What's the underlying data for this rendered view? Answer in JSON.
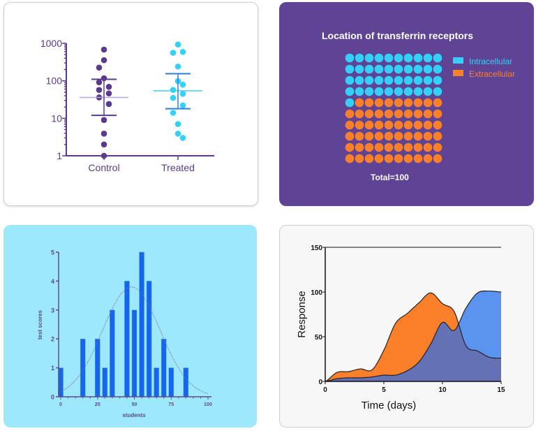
{
  "chart_data": [
    {
      "type": "scatter",
      "y_scale": "log",
      "ylim": [
        1,
        1000
      ],
      "yticks": [
        "1",
        "10",
        "100",
        "1000"
      ],
      "categories": [
        "Control",
        "Treated"
      ],
      "series": [
        {
          "name": "Control",
          "values": [
            680,
            355,
            225,
            117,
            91,
            69,
            57,
            46,
            36,
            24,
            9,
            3.9,
            2,
            1
          ],
          "mean": 36,
          "error_low": 12,
          "error_high": 110,
          "point_color": "#5a3a8c",
          "mean_color": "#b9a3e6",
          "error_color": "#5a3a8c"
        },
        {
          "name": "Treated",
          "values": [
            930,
            590,
            560,
            240,
            98,
            79,
            57,
            45,
            35,
            22,
            14,
            7,
            3.9,
            3
          ],
          "mean": 54,
          "error_low": 18,
          "error_high": 155,
          "point_color": "#33d1f7",
          "mean_color": "#3fd0f5",
          "error_color": "#2e7fe0"
        }
      ]
    },
    {
      "type": "waffle",
      "title": "Location of transferrin receptors",
      "total_label": "Total=100",
      "total": 100,
      "series": [
        {
          "name": "Intracellular",
          "value": 41,
          "color": "#33d1f7"
        },
        {
          "name": "Extracellular",
          "value": 59,
          "color": "#fc7f2a"
        }
      ],
      "legend": "right"
    },
    {
      "type": "bar",
      "xlabel": "students",
      "ylabel": "test scores",
      "xlim": [
        0,
        100
      ],
      "ylim": [
        0,
        5
      ],
      "xticks": [
        "0",
        "25",
        "50",
        "75",
        "100"
      ],
      "yticks": [
        "0",
        "1",
        "2",
        "3",
        "4",
        "5"
      ],
      "x": [
        0,
        15,
        25,
        30,
        35,
        45,
        50,
        55,
        60,
        65,
        70,
        75,
        85
      ],
      "values": [
        1,
        2,
        2,
        1,
        3,
        4,
        3,
        5,
        4,
        1,
        2,
        1,
        1
      ],
      "bar_color": "#1566ec",
      "fit_curve": {
        "type": "gaussian",
        "mean": 48,
        "sd": 19.5,
        "peak": 3.8
      }
    },
    {
      "type": "area",
      "xlabel": "Time (days)",
      "ylabel": "Response",
      "xlim": [
        0,
        15
      ],
      "ylim": [
        0,
        150
      ],
      "xticks": [
        "0",
        "5",
        "10",
        "15"
      ],
      "yticks": [
        "0",
        "50",
        "100",
        "150"
      ],
      "x": [
        0,
        1,
        2,
        3,
        4,
        5,
        6,
        7,
        8,
        9,
        10,
        11,
        12,
        13,
        14,
        15
      ],
      "series": [
        {
          "values": [
            0,
            10,
            11,
            14,
            13,
            35,
            65,
            76,
            88,
            99,
            87,
            78,
            40,
            34,
            27,
            26
          ],
          "color": "#fc7f2a"
        },
        {
          "values": [
            0,
            3,
            4,
            4,
            5,
            7,
            7,
            12,
            22,
            42,
            66,
            57,
            82,
            99,
            101,
            100
          ],
          "color": "#5b94ee"
        }
      ],
      "overlap_color": "#6471b4"
    }
  ]
}
